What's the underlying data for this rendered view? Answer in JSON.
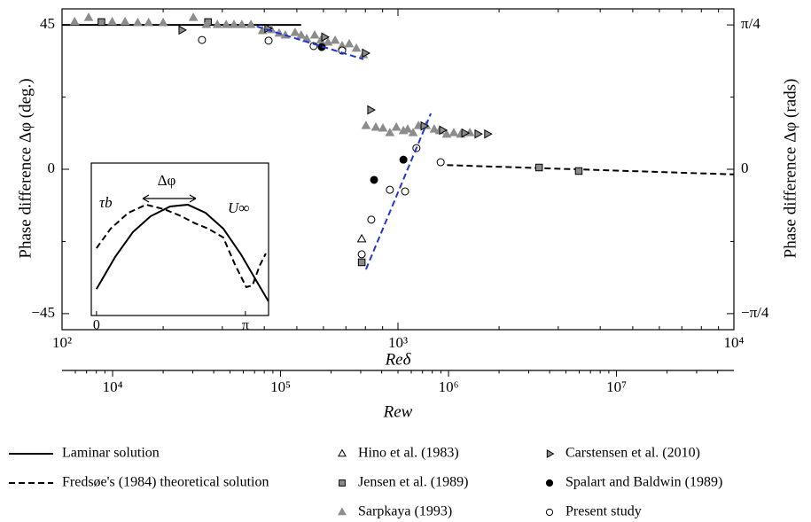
{
  "chart_data": [
    {
      "type": "line",
      "xlabel": "Reδ",
      "ylabel": "Phase difference Δφ (deg.)",
      "y2label": "Phase difference Δφ (rads)",
      "xscale": "log",
      "xlim": [
        100,
        10000
      ],
      "xticks": [
        {
          "value": 100,
          "label": "10²"
        },
        {
          "value": 1000,
          "label": "10³"
        },
        {
          "value": 10000,
          "label": "10⁴"
        }
      ],
      "ylim": [
        -50,
        50
      ],
      "yticks": [
        45,
        0,
        {
          "value": -45,
          "label": "−45"
        }
      ],
      "yminorticks": [
        -22.5,
        22.5
      ],
      "y2lim": [
        -0.8727,
        0.8727
      ],
      "y2ticks": [
        {
          "value": 0.7854,
          "label": "π/4"
        },
        0,
        {
          "value": -0.7854,
          "label": "−π/4"
        }
      ],
      "y2minorticks": [
        -0.3927,
        0.3927
      ],
      "x2label": "Rew",
      "x2lim": [
        5000,
        50000000
      ],
      "x2ticks": [
        {
          "value": 10000,
          "label": "10⁴"
        },
        {
          "value": 100000,
          "label": "10⁵"
        },
        {
          "value": 1000000,
          "label": "10⁶"
        },
        {
          "value": 10000000,
          "label": "10⁷"
        }
      ],
      "series": [
        {
          "name": "Laminar solution",
          "color": "#000000",
          "linestyle": "solid",
          "x": [
            100,
            515
          ],
          "values": [
            45,
            45
          ]
        },
        {
          "name": "Fredsøe's (1984) theoretical solution",
          "color": "#000000",
          "linestyle": "dashed",
          "x": [
            1400,
            10000
          ],
          "values": [
            1.3,
            -1.6
          ]
        },
        {
          "name": "Hino et al. (1983)",
          "marker": "triangle",
          "color": "#ffffff",
          "edgecolor": "#000000",
          "x": [
            780
          ],
          "values": [
            -21.8
          ]
        },
        {
          "name": "Jensen et al. (1989)",
          "marker": "square",
          "color": "#8c8c8c",
          "edgecolor": "#000000",
          "x": [
            131,
            272,
            780,
            2630,
            3453
          ],
          "values": [
            45.9,
            45.9,
            -29.0,
            0.55,
            -0.55
          ]
        },
        {
          "name": "Sarpkaya (1993)",
          "marker": "triangle",
          "color": "#8c8c8c",
          "edgecolor": "#8c8c8c",
          "x": [
            109,
            120,
            141,
            154,
            168,
            181,
            200,
            246,
            269,
            290,
            308,
            325,
            343,
            365,
            395,
            420,
            443,
            462,
            494,
            515,
            535,
            565,
            589,
            619,
            650,
            682,
            716,
            752,
            789,
            803,
            859,
            902,
            946,
            989,
            1038,
            1069,
            1109,
            1151,
            1213,
            1282,
            1330,
            1396,
            1466,
            1538,
            1637
          ],
          "values": [
            45.9,
            47.2,
            45.9,
            45.9,
            45.6,
            45.6,
            45.6,
            47.2,
            45.0,
            45.0,
            45.0,
            45.0,
            45.0,
            45.0,
            43.1,
            43.4,
            42.3,
            41.7,
            42.5,
            41.7,
            40.6,
            41.7,
            40.1,
            39.5,
            40.1,
            38.4,
            39.0,
            37.6,
            35.6,
            13.5,
            13.0,
            12.7,
            11.3,
            13.0,
            11.9,
            12.4,
            11.3,
            13.5,
            13.5,
            12.4,
            11.9,
            10.8,
            11.3,
            10.8,
            11.3
          ]
        },
        {
          "name": "Carstensen et al. (2010)",
          "marker": "tri-right",
          "color": "#8c8c8c",
          "edgecolor": "#000000",
          "x": [
            227,
            409,
            604,
            798,
            828,
            1193,
            1355,
            1578,
            1727,
            1845
          ],
          "values": [
            43.4,
            43.9,
            41.2,
            36.2,
            18.5,
            13.5,
            12.2,
            11.3,
            11.0,
            11.0
          ]
        },
        {
          "name": "Spalart and Baldwin (1989)",
          "marker": "circle",
          "color": "#000000",
          "edgecolor": "#000000",
          "x": [
            593,
            849,
            1038
          ],
          "values": [
            38.1,
            -3.3,
            3.0
          ]
        },
        {
          "name": "Present study",
          "marker": "circle",
          "color": "#ffffff",
          "edgecolor": "#000000",
          "x": [
            261,
            412,
            561,
            682,
            780,
            833,
            946,
            1050,
            1135,
            1340
          ],
          "values": [
            40.3,
            40.1,
            38.4,
            37.0,
            -26.5,
            -15.7,
            -6.4,
            -6.9,
            6.6,
            2.2
          ]
        },
        {
          "color": "#1f35d6",
          "linestyle": "dashed",
          "x": [
            380,
            789
          ],
          "values": [
            44.5,
            34.3
          ]
        },
        {
          "color": "#1f35d6",
          "linestyle": "dashed",
          "x": [
            803,
            1253
          ],
          "values": [
            -31.2,
            17.4
          ]
        }
      ]
    },
    {
      "type": "line",
      "xlim": [
        -0.11,
        3.63
      ],
      "ylim": [
        0,
        1
      ],
      "xticks": [
        0,
        {
          "value": 3.1416,
          "label": "π"
        }
      ],
      "annotation": "Δφ",
      "series": [
        {
          "name": "U∞",
          "color": "#000000",
          "linestyle": "solid",
          "x": [
            0,
            0.393,
            0.767,
            1.141,
            1.552,
            1.926,
            2.3,
            2.674,
            3.048,
            3.385,
            3.628
          ],
          "values": [
            0.174,
            0.384,
            0.547,
            0.651,
            0.715,
            0.727,
            0.674,
            0.57,
            0.401,
            0.221,
            0.093
          ]
        },
        {
          "name": "τb",
          "color": "#000000",
          "linestyle": "dashed",
          "x": [
            0,
            0.299,
            0.673,
            1.047,
            1.421,
            1.795,
            2.076,
            2.356,
            2.674,
            2.917,
            3.16,
            3.291,
            3.441,
            3.572
          ],
          "values": [
            0.442,
            0.57,
            0.674,
            0.727,
            0.698,
            0.651,
            0.605,
            0.57,
            0.512,
            0.337,
            0.186,
            0.198,
            0.326,
            0.407
          ]
        }
      ]
    }
  ]
}
